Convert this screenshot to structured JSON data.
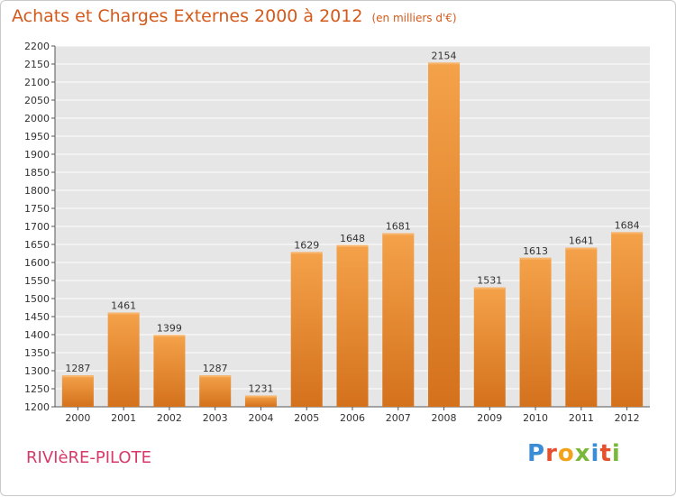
{
  "chart_data": {
    "type": "bar",
    "title": "Achats et Charges Externes 2000 à 2012",
    "subtitle": "(en milliers d'€)",
    "categories": [
      "2000",
      "2001",
      "2002",
      "2003",
      "2004",
      "2005",
      "2006",
      "2007",
      "2008",
      "2009",
      "2010",
      "2011",
      "2012"
    ],
    "values": [
      1287,
      1461,
      1399,
      1287,
      1231,
      1629,
      1648,
      1681,
      2154,
      1531,
      1613,
      1641,
      1684
    ],
    "ylim": [
      1200,
      2200
    ],
    "yticks": [
      1200,
      1250,
      1300,
      1350,
      1400,
      1450,
      1500,
      1550,
      1600,
      1650,
      1700,
      1750,
      1800,
      1850,
      1900,
      1950,
      2000,
      2050,
      2100,
      2150,
      2200
    ],
    "xlabel": "",
    "ylabel": "",
    "grid": true,
    "bar_color": "#ec8a30"
  },
  "footer": {
    "place_name": "RIVIèRE-PILOTE",
    "logo_letters": [
      "P",
      "r",
      "o",
      "x",
      "i",
      "t",
      "i"
    ],
    "logo_colors": [
      "#3b8ed6",
      "#e7502d",
      "#f2a21b",
      "#7ab83a",
      "#3b8ed6",
      "#e7502d",
      "#7ab83a"
    ]
  }
}
